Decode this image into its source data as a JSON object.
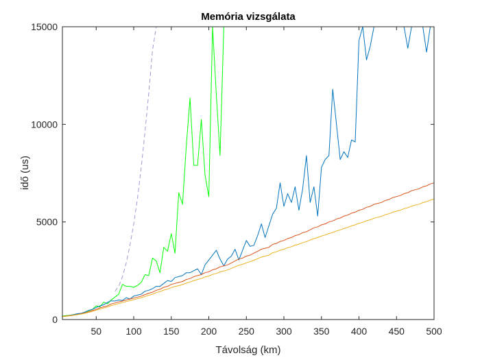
{
  "chart_data": {
    "type": "line",
    "title": "Memória vizsgálata",
    "xlabel": "Távolság (km)",
    "ylabel": "idő (us)",
    "xlim": [
      5,
      500
    ],
    "ylim": [
      0,
      15000
    ],
    "grid": false,
    "legend": "none",
    "xticks": [
      50,
      100,
      150,
      200,
      250,
      300,
      350,
      400,
      450,
      500
    ],
    "yticks": [
      0,
      5000,
      10000,
      15000
    ],
    "x": [
      5,
      10,
      15,
      20,
      25,
      30,
      35,
      40,
      45,
      50,
      55,
      60,
      65,
      70,
      75,
      80,
      85,
      90,
      95,
      100,
      105,
      110,
      115,
      120,
      125,
      130,
      135,
      140,
      145,
      150,
      155,
      160,
      165,
      170,
      175,
      180,
      185,
      190,
      195,
      200,
      205,
      210,
      215,
      220,
      225,
      230,
      235,
      240,
      245,
      250,
      255,
      260,
      265,
      270,
      275,
      280,
      285,
      290,
      295,
      300,
      305,
      310,
      315,
      320,
      325,
      330,
      335,
      340,
      345,
      350,
      355,
      360,
      365,
      370,
      375,
      380,
      385,
      390,
      395,
      400,
      405,
      410,
      415,
      420,
      425,
      430,
      435,
      440,
      445,
      450,
      455,
      460,
      465,
      470,
      475,
      480,
      485,
      490,
      495,
      500
    ],
    "series": [
      {
        "color": "#00ff00",
        "style": "solid",
        "values": [
          180,
          200,
          220,
          250,
          280,
          320,
          370,
          450,
          520,
          700,
          650,
          900,
          800,
          1000,
          1150,
          1300,
          1800,
          1700,
          1700,
          1650,
          1750,
          1900,
          2300,
          2250,
          3150,
          3000,
          2400,
          3700,
          3500,
          4400,
          3400,
          6500,
          5900,
          8900,
          11350,
          7900,
          7900,
          10250,
          7400,
          6300,
          15000,
          11500,
          8400,
          15000,
          null,
          null,
          null,
          null,
          null,
          null,
          null,
          null,
          null,
          null,
          null,
          null,
          null,
          null,
          null,
          null,
          null,
          null,
          null,
          null,
          null,
          null,
          null,
          null,
          null,
          null,
          null,
          null,
          null,
          null,
          null,
          null,
          null,
          null,
          null,
          null,
          null,
          null,
          null,
          null,
          null,
          null,
          null,
          null,
          null,
          null,
          null,
          null,
          null,
          null,
          null,
          null,
          null,
          null,
          null,
          null
        ]
      },
      {
        "color": "#0072bd",
        "style": "solid",
        "values": [
          150,
          180,
          210,
          250,
          300,
          320,
          380,
          470,
          520,
          620,
          700,
          760,
          880,
          960,
          950,
          1000,
          980,
          1120,
          1050,
          1200,
          1250,
          1300,
          1450,
          1500,
          1580,
          1700,
          1700,
          1850,
          2000,
          1950,
          2150,
          2200,
          2250,
          2400,
          2400,
          2500,
          2600,
          2300,
          2800,
          3050,
          3300,
          3550,
          3100,
          2750,
          3100,
          3250,
          3600,
          3050,
          3550,
          4050,
          3750,
          3800,
          4300,
          4900,
          4200,
          4800,
          5400,
          5700,
          7000,
          5800,
          6450,
          6000,
          6800,
          5600,
          6700,
          8400,
          6000,
          6800,
          5300,
          7800,
          8200,
          8400,
          11800,
          10000,
          8200,
          8600,
          8300,
          9200,
          9100,
          14300,
          15000,
          13300,
          14000,
          15000,
          15000,
          15000,
          15000,
          15000,
          15000,
          15000,
          15000,
          15000,
          13900,
          15000,
          15000,
          15000,
          15000,
          13700,
          15000,
          15000
        ]
      },
      {
        "color": "#d95319",
        "style": "solid",
        "values": [
          160,
          180,
          200,
          230,
          260,
          300,
          340,
          400,
          460,
          520,
          600,
          650,
          700,
          800,
          850,
          900,
          950,
          1000,
          1050,
          1100,
          1150,
          1200,
          1280,
          1350,
          1400,
          1500,
          1550,
          1650,
          1700,
          1800,
          1850,
          1900,
          1950,
          2050,
          2100,
          2200,
          2250,
          2300,
          2400,
          2450,
          2550,
          2600,
          2700,
          2750,
          2800,
          2900,
          3000,
          3100,
          3150,
          3250,
          3300,
          3400,
          3500,
          3600,
          3650,
          3700,
          3850,
          3900,
          4000,
          4050,
          4150,
          4200,
          4300,
          4350,
          4450,
          4500,
          4600,
          4700,
          4750,
          4850,
          4900,
          5000,
          5050,
          5150,
          5200,
          5300,
          5350,
          5450,
          5500,
          5600,
          5650,
          5750,
          5800,
          5900,
          5950,
          6000,
          6100,
          6150,
          6250,
          6300,
          6350,
          6450,
          6500,
          6600,
          6650,
          6700,
          6800,
          6850,
          6950,
          7000
        ]
      },
      {
        "color": "#edb120",
        "style": "solid",
        "values": [
          150,
          170,
          190,
          220,
          250,
          280,
          320,
          370,
          420,
          480,
          540,
          590,
          640,
          720,
          770,
          820,
          870,
          920,
          970,
          1020,
          1070,
          1120,
          1180,
          1240,
          1300,
          1380,
          1430,
          1510,
          1560,
          1640,
          1690,
          1740,
          1790,
          1870,
          1920,
          2000,
          2050,
          2100,
          2180,
          2230,
          2310,
          2360,
          2440,
          2490,
          2540,
          2620,
          2700,
          2780,
          2830,
          2910,
          2960,
          3040,
          3120,
          3200,
          3250,
          3300,
          3420,
          3470,
          3550,
          3600,
          3680,
          3730,
          3810,
          3860,
          3940,
          3990,
          4070,
          4150,
          4200,
          4280,
          4330,
          4410,
          4460,
          4540,
          4590,
          4670,
          4720,
          4800,
          4850,
          4930,
          4980,
          5060,
          5110,
          5190,
          5240,
          5290,
          5370,
          5420,
          5500,
          5550,
          5600,
          5680,
          5730,
          5810,
          5860,
          5910,
          5990,
          6040,
          6120,
          6170
        ]
      },
      {
        "color": "#9c9ad0",
        "style": "dashed",
        "values": [
          null,
          null,
          null,
          null,
          null,
          null,
          null,
          null,
          null,
          null,
          null,
          null,
          null,
          null,
          1450,
          1700,
          2200,
          2900,
          3800,
          4900,
          6200,
          7800,
          9600,
          11600,
          13800,
          15000,
          null,
          null,
          null,
          null,
          null,
          null,
          null,
          null,
          null,
          null,
          null,
          null,
          null,
          null,
          null,
          null,
          null,
          null,
          null,
          null,
          null,
          null,
          null,
          null,
          null,
          null,
          null,
          null,
          null,
          null,
          null,
          null,
          null,
          null,
          null,
          null,
          null,
          null,
          null,
          null,
          null,
          null,
          null,
          null,
          null,
          null,
          null,
          null,
          null,
          null,
          null,
          null,
          null,
          null,
          null,
          null,
          null,
          null,
          null,
          null,
          null,
          null,
          null,
          null,
          null,
          null,
          null,
          null,
          null,
          null,
          null,
          null,
          null,
          null
        ]
      }
    ]
  }
}
